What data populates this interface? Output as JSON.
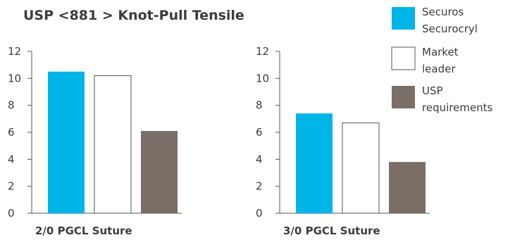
{
  "colors": {
    "securos": "#00b5e8",
    "market_leader": "#ffffff",
    "usp": "#7a6e66",
    "axis": "#555555",
    "text": "#3c3c3c"
  },
  "chart_data": [
    {
      "type": "bar",
      "title": "USP <881 > Knot-Pull Tensile",
      "xlabel": "2/0 PGCL Suture",
      "ylim": [
        0,
        12
      ],
      "yticks": [
        0,
        2,
        4,
        6,
        8,
        10,
        12
      ],
      "categories": [
        "Securos Securocryl",
        "Market leader",
        "USP requirements"
      ],
      "values": [
        10.5,
        10.2,
        6.1
      ]
    },
    {
      "type": "bar",
      "xlabel": "3/0 PGCL Suture",
      "ylim": [
        0,
        12
      ],
      "yticks": [
        0,
        2,
        4,
        6,
        8,
        10,
        12
      ],
      "categories": [
        "Securos Securocryl",
        "Market leader",
        "USP requirements"
      ],
      "values": [
        7.4,
        6.7,
        3.8
      ]
    }
  ],
  "legend": {
    "placement": "top-right",
    "items": [
      {
        "lines": [
          "Securos",
          "Securocryl"
        ],
        "color_key": "securos"
      },
      {
        "lines": [
          "Market",
          "leader"
        ],
        "color_key": "market_leader"
      },
      {
        "lines": [
          "USP",
          "requirements"
        ],
        "color_key": "usp"
      }
    ]
  }
}
